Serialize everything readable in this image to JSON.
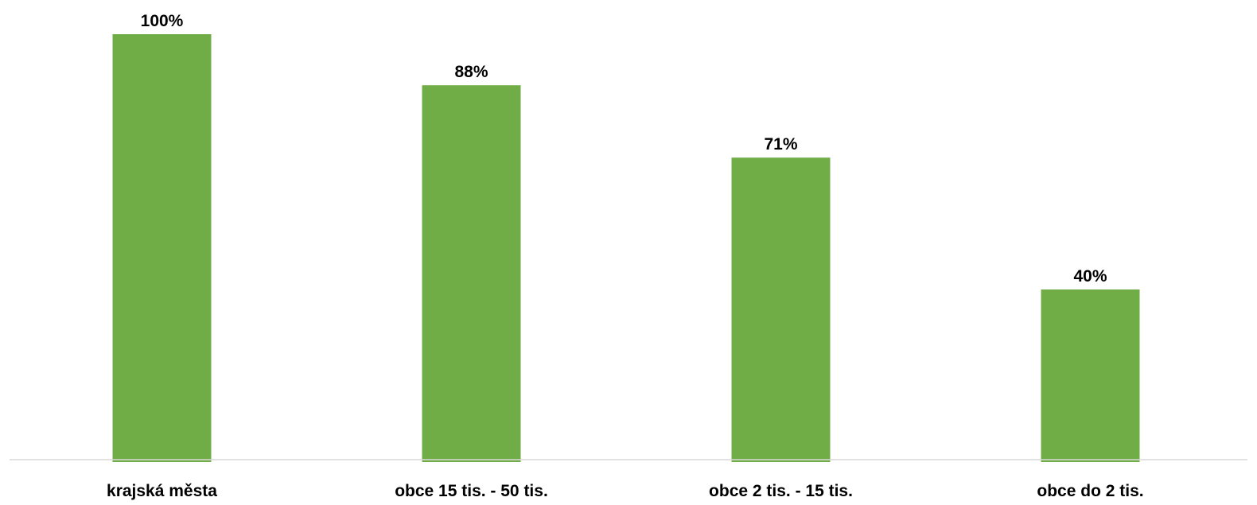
{
  "colors": {
    "bar": "#70AD47",
    "axis": "#D9D9D9",
    "text": "#000000",
    "background": "#FFFFFF"
  },
  "chart_data": {
    "type": "bar",
    "categories": [
      "krajská města",
      "obce 15 tis. - 50 tis.",
      "obce 2 tis. - 15 tis.",
      "obce do 2 tis."
    ],
    "values": [
      100,
      88,
      71,
      40
    ],
    "data_labels": [
      "100%",
      "88%",
      "71%",
      "40%"
    ],
    "unit": "%",
    "ylim": [
      0,
      100
    ],
    "grid": false,
    "legend": "none",
    "title": "",
    "xlabel": "",
    "ylabel": ""
  }
}
